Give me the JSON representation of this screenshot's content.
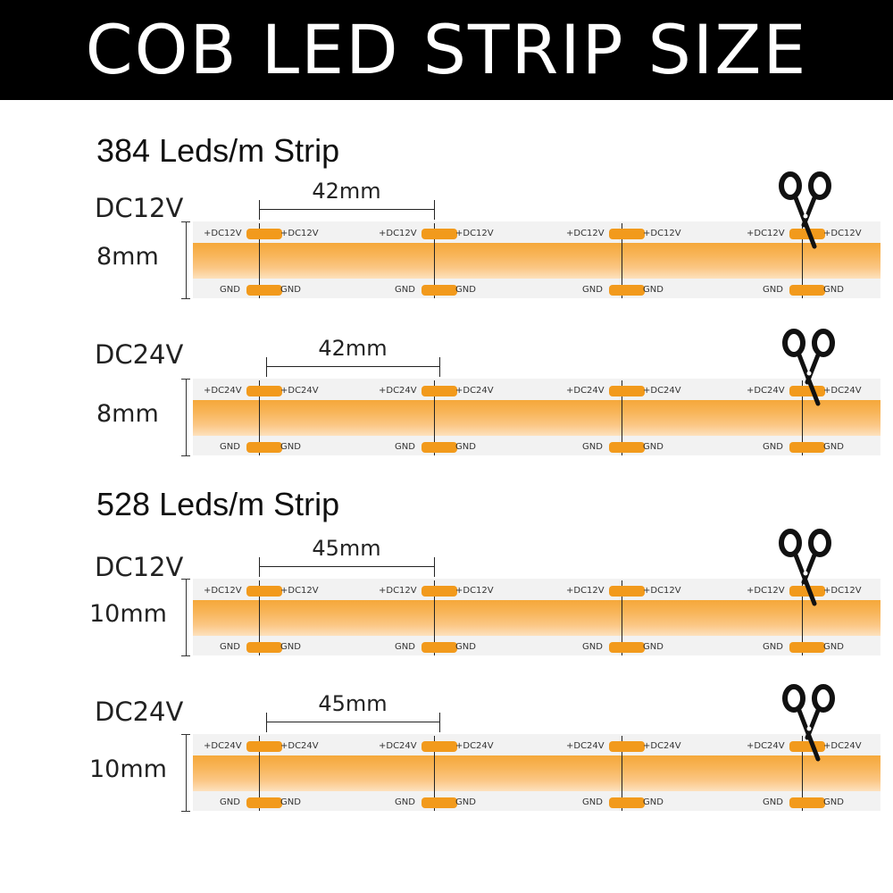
{
  "title": "COB LED STRIP SIZE",
  "sections": [
    {
      "heading": "384 Leds/m Strip",
      "rows": [
        {
          "voltage": "DC12V",
          "width": "8mm",
          "spacing": "42mm",
          "pad_label_v": "+DC12V",
          "pad_label_g": "GND"
        },
        {
          "voltage": "DC24V",
          "width": "8mm",
          "spacing": "42mm",
          "pad_label_v": "+DC24V",
          "pad_label_g": "GND"
        }
      ]
    },
    {
      "heading": "528 Leds/m Strip",
      "rows": [
        {
          "voltage": "DC12V",
          "width": "10mm",
          "spacing": "45mm",
          "pad_label_v": "+DC12V",
          "pad_label_g": "GND"
        },
        {
          "voltage": "DC24V",
          "width": "10mm",
          "spacing": "45mm",
          "pad_label_v": "+DC24V",
          "pad_label_g": "GND"
        }
      ]
    }
  ],
  "colors": {
    "led_band": "#f8b55a",
    "solder_pad": "#f29a1c",
    "banner": "#000000"
  },
  "icons": {
    "cut_marker": "scissors-icon"
  }
}
